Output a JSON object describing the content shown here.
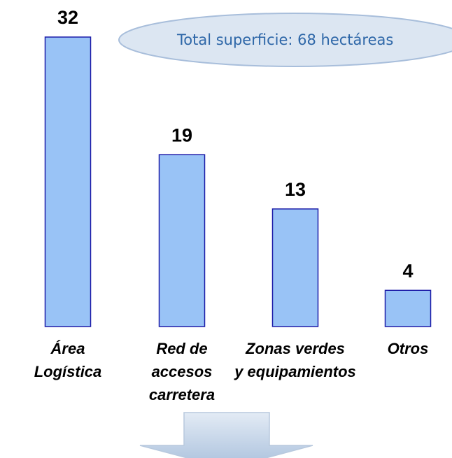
{
  "chart_data": {
    "type": "bar",
    "categories": [
      "Área\nLogística",
      "Red de\naccesos\ncarretera",
      "Zonas verdes\ny equipamientos",
      "Otros"
    ],
    "values": [
      32,
      19,
      13,
      4
    ],
    "color": "#99c3f6",
    "edge_color": "#1c1ca8",
    "annotation": "Total superficie: 68 hectáreas"
  }
}
